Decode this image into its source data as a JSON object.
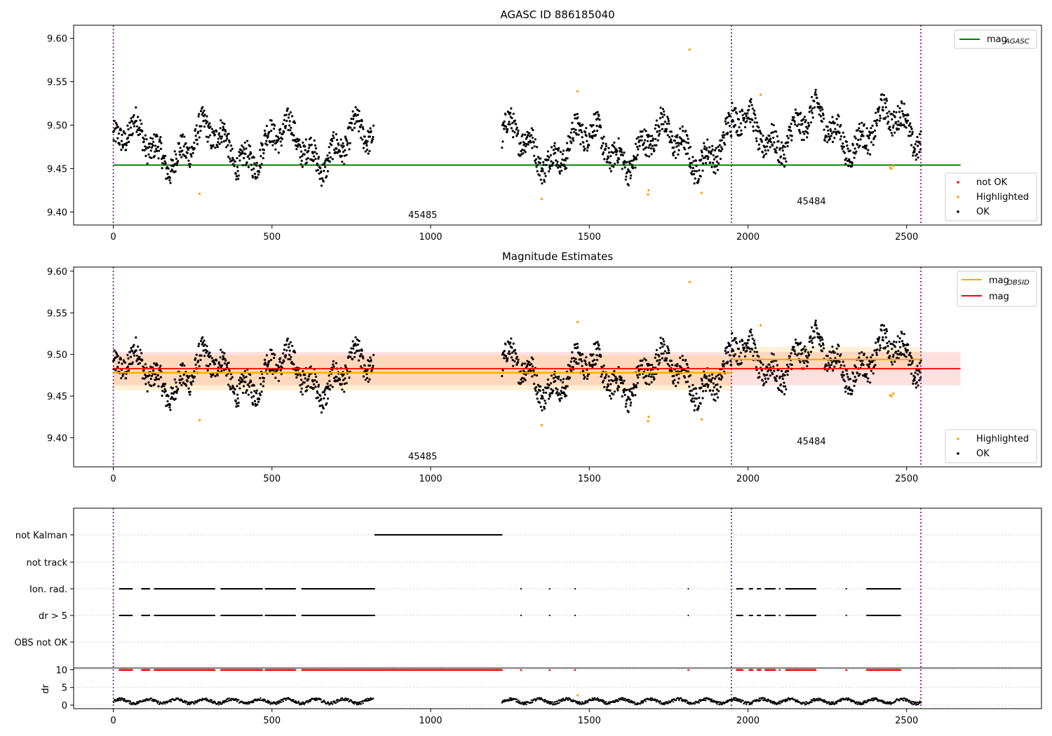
{
  "chart_data": [
    {
      "type": "scatter",
      "title": "AGASC ID 886185040",
      "xlim": [
        -125,
        2925
      ],
      "ylim": [
        9.385,
        9.615
      ],
      "xticks": [
        "0",
        "500",
        "1000",
        "1500",
        "2000",
        "2500"
      ],
      "yticks": [
        "9.40",
        "9.45",
        "9.50",
        "9.55",
        "9.60"
      ],
      "mag_agasc": 9.454,
      "obsid_boundaries": [
        0,
        1948,
        2545
      ],
      "obsid_labels": [
        {
          "text": "45485",
          "x": 975,
          "y": 9.393
        },
        {
          "text": "45484",
          "x": 2200,
          "y": 9.409
        }
      ],
      "series": [
        {
          "name": "not OK",
          "color": "#ff0000",
          "values": []
        },
        {
          "name": "Highlighted",
          "color": "#ffa500",
          "values": [
            [
              272,
              9.421
            ],
            [
              1350,
              9.415
            ],
            [
              1463,
              9.539
            ],
            [
              1685,
              9.42
            ],
            [
              1687,
              9.425
            ],
            [
              1816,
              9.587
            ],
            [
              1854,
              9.422
            ],
            [
              2040,
              9.535
            ],
            [
              2448,
              9.451
            ],
            [
              2452,
              9.45
            ],
            [
              2458,
              9.453
            ]
          ]
        },
        {
          "name": "OK",
          "color": "#000000",
          "segments": [
            [
              0,
              820
            ],
            [
              1225,
              2545
            ]
          ]
        }
      ],
      "legend_top": {
        "label": "mag",
        "sub": "AGASC",
        "color": "#008000"
      }
    },
    {
      "type": "scatter",
      "title": "Magnitude Estimates",
      "xlim": [
        -125,
        2925
      ],
      "ylim": [
        9.365,
        9.605
      ],
      "xticks": [
        "0",
        "500",
        "1000",
        "1500",
        "2000",
        "2500"
      ],
      "yticks": [
        "9.40",
        "9.45",
        "9.50",
        "9.55",
        "9.60"
      ],
      "mag": 9.483,
      "mag_band": [
        9.463,
        9.503
      ],
      "mag_obsid": [
        {
          "x": [
            0,
            1948
          ],
          "value": 9.478,
          "band": [
            9.457,
            9.499
          ]
        },
        {
          "x": [
            1948,
            2545
          ],
          "value": 9.494,
          "band": [
            9.48,
            9.509
          ]
        }
      ],
      "obsid_labels": [
        {
          "text": "45485",
          "x": 975,
          "y": 9.374
        },
        {
          "text": "45484",
          "x": 2200,
          "y": 9.392
        }
      ],
      "legend_top": [
        {
          "label": "mag",
          "sub": "OBSID",
          "color": "#ffa500"
        },
        {
          "label": "mag",
          "sub": "",
          "color": "#ff0000"
        }
      ],
      "legend_bottom": [
        {
          "label": "Highlighted",
          "color": "#ffa500"
        },
        {
          "label": "OK",
          "color": "#000000"
        }
      ]
    },
    {
      "type": "scatter",
      "xlim": [
        -125,
        2925
      ],
      "xticks": [
        "0",
        "500",
        "1000",
        "1500",
        "2000",
        "2500"
      ],
      "flag_rows": [
        "not Kalman",
        "not track",
        "Ion. rad.",
        "dr > 5",
        "OBS not OK"
      ],
      "flags": {
        "not Kalman": [
          [
            825,
            1225
          ]
        ],
        "not track": [],
        "Ion. rad.": [
          [
            20,
            60
          ],
          [
            90,
            115
          ],
          [
            130,
            320
          ],
          [
            340,
            470
          ],
          [
            480,
            575
          ],
          [
            595,
            825
          ],
          [
            1285,
            1285
          ],
          [
            1375,
            1375
          ],
          [
            1455,
            1455
          ],
          [
            1812,
            1812
          ],
          [
            1965,
            1985
          ],
          [
            2005,
            2015
          ],
          [
            2030,
            2040
          ],
          [
            2055,
            2085
          ],
          [
            2100,
            2100
          ],
          [
            2120,
            2215
          ],
          [
            2310,
            2310
          ],
          [
            2375,
            2480
          ]
        ],
        "dr > 5": [
          [
            20,
            60
          ],
          [
            90,
            115
          ],
          [
            130,
            320
          ],
          [
            340,
            470
          ],
          [
            480,
            575
          ],
          [
            595,
            825
          ],
          [
            1285,
            1285
          ],
          [
            1375,
            1375
          ],
          [
            1455,
            1455
          ],
          [
            1812,
            1812
          ],
          [
            1965,
            1985
          ],
          [
            2005,
            2015
          ],
          [
            2030,
            2040
          ],
          [
            2055,
            2085
          ],
          [
            2100,
            2100
          ],
          [
            2120,
            2215
          ],
          [
            2310,
            2310
          ],
          [
            2375,
            2480
          ]
        ],
        "OBS not OK": []
      },
      "dr": {
        "ylabel": "dr",
        "yticks": [
          "0",
          "5",
          "10"
        ],
        "ylim": [
          -1,
          10.5
        ],
        "clipped_value": 10,
        "clipped_color": "#ff0000",
        "clipped_ranges": [
          [
            20,
            60
          ],
          [
            90,
            115
          ],
          [
            130,
            320
          ],
          [
            340,
            470
          ],
          [
            480,
            575
          ],
          [
            595,
            825
          ],
          [
            825,
            1225
          ],
          [
            1285,
            1285
          ],
          [
            1375,
            1375
          ],
          [
            1455,
            1455
          ],
          [
            1812,
            1812
          ],
          [
            1965,
            1985
          ],
          [
            2005,
            2015
          ],
          [
            2030,
            2040
          ],
          [
            2055,
            2085
          ],
          [
            2100,
            2100
          ],
          [
            2120,
            2215
          ],
          [
            2310,
            2310
          ],
          [
            2375,
            2480
          ]
        ],
        "segments": [
          [
            0,
            820
          ],
          [
            1225,
            2545
          ]
        ]
      }
    }
  ]
}
